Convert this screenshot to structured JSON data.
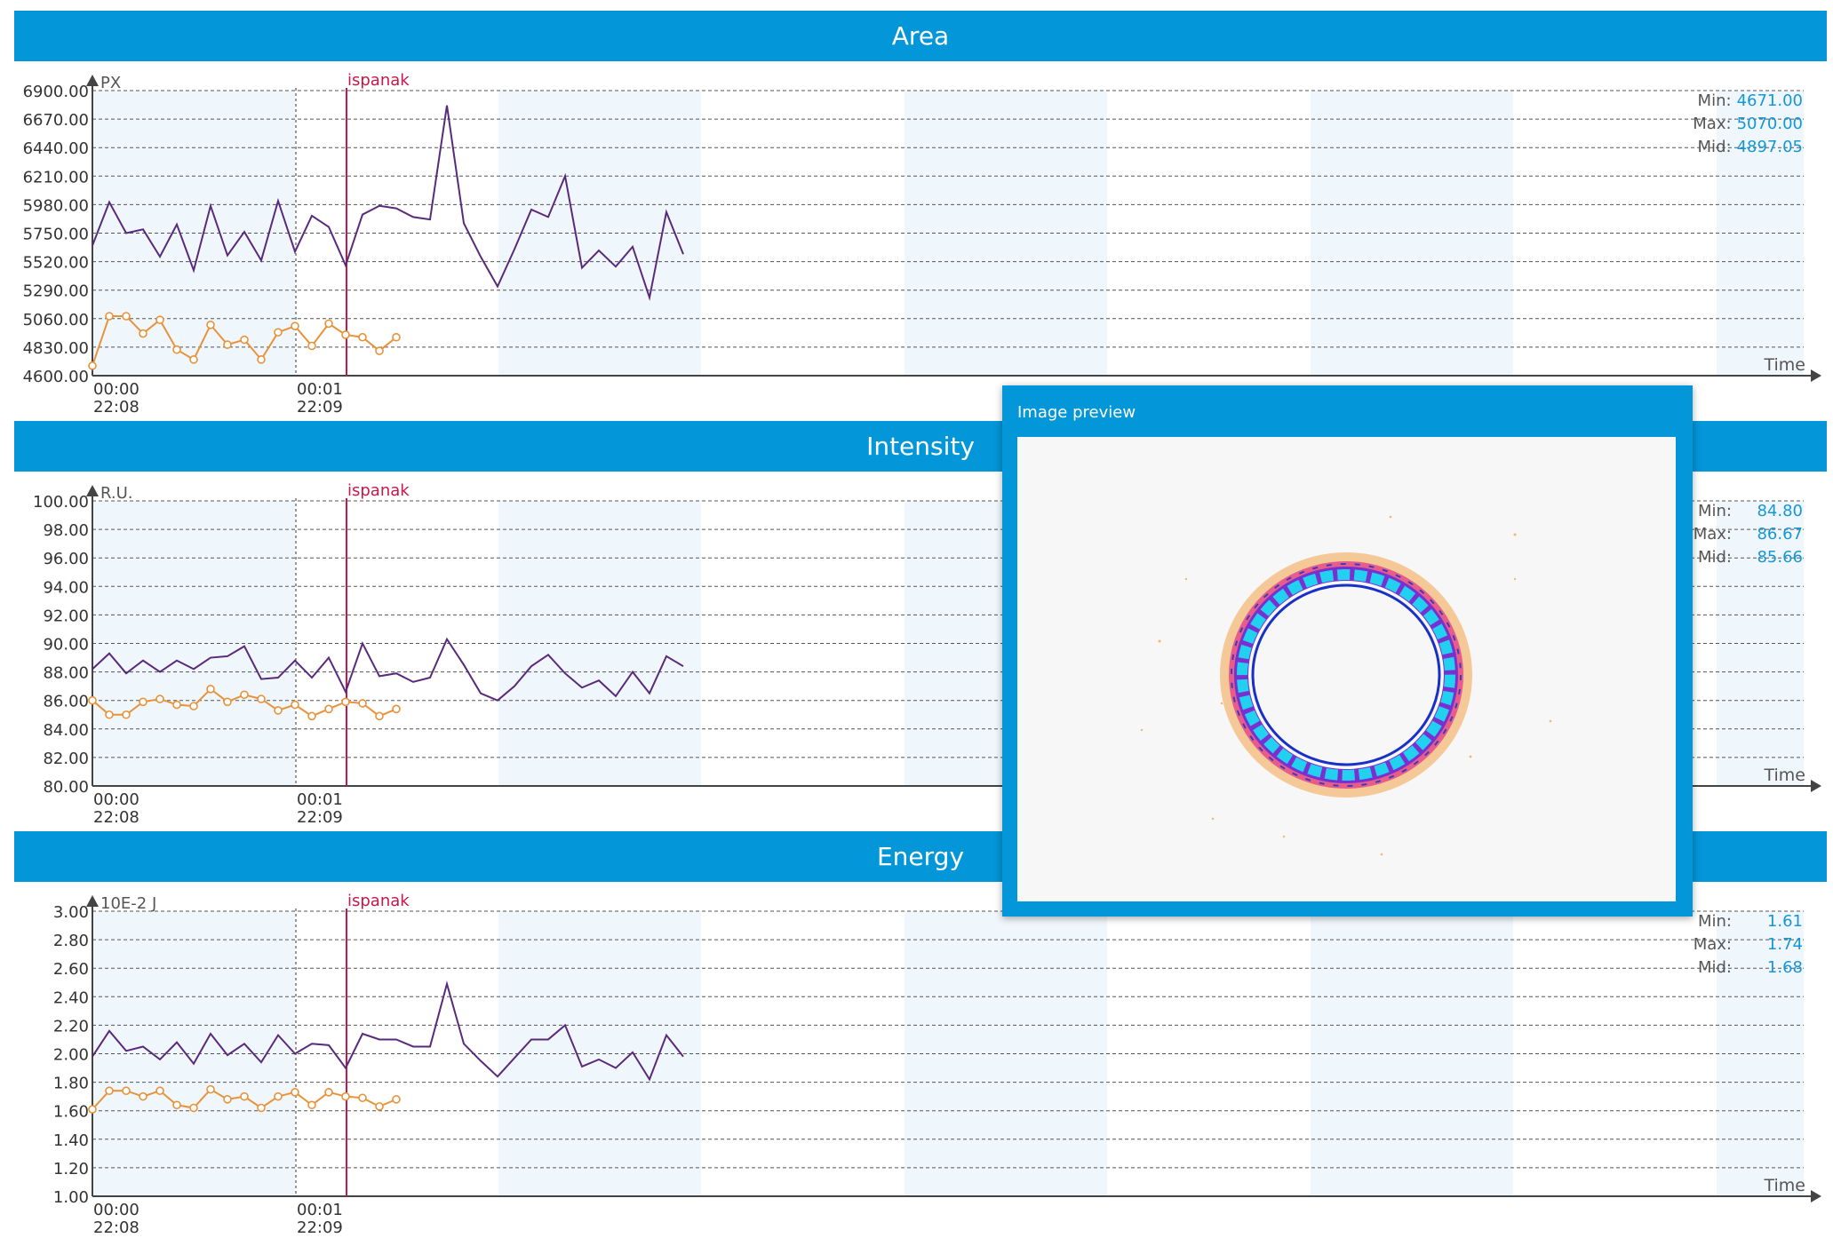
{
  "colors": {
    "header": "#0396d8",
    "purple_series": "#5a2a7a",
    "orange_series": "#e8923a",
    "marker_line": "#c8174a",
    "stat_value": "#1596d6",
    "band": "#f0f7fc"
  },
  "charts": [
    {
      "title": "Area",
      "unit": "PX",
      "axis_label": "Time",
      "marker_label": "ispanak",
      "y_ticks": [
        "6900.00",
        "6670.00",
        "6440.00",
        "6210.00",
        "5980.00",
        "5750.00",
        "5520.00",
        "5290.00",
        "5060.00",
        "4830.00",
        "4600.00"
      ],
      "x_ticks": [
        {
          "top": "00:00",
          "bottom": "22:08"
        },
        {
          "top": "00:01",
          "bottom": "22:09"
        }
      ],
      "stats": {
        "min_label": "Min:",
        "min_value": "4671.00",
        "max_label": "Max:",
        "max_value": "5070.00",
        "mid_label": "Mid:",
        "mid_value": "4897.05"
      }
    },
    {
      "title": "Intensity",
      "unit": "R.U.",
      "axis_label": "Time",
      "marker_label": "ispanak",
      "y_ticks": [
        "100.00",
        "98.00",
        "96.00",
        "94.00",
        "92.00",
        "90.00",
        "88.00",
        "86.00",
        "84.00",
        "82.00",
        "80.00"
      ],
      "x_ticks": [
        {
          "top": "00:00",
          "bottom": "22:08"
        },
        {
          "top": "00:01",
          "bottom": "22:09"
        }
      ],
      "stats": {
        "min_label": "Min:",
        "min_value": "84.80",
        "max_label": "Max:",
        "max_value": "86.67",
        "mid_label": "Mid:",
        "mid_value": "85.66"
      }
    },
    {
      "title": "Energy",
      "unit": "10E-2 J",
      "axis_label": "Time",
      "marker_label": "ispanak",
      "y_ticks": [
        "3.00",
        "2.80",
        "2.60",
        "2.40",
        "2.20",
        "2.00",
        "1.80",
        "1.60",
        "1.40",
        "1.20",
        "1.00"
      ],
      "x_ticks": [
        {
          "top": "00:00",
          "bottom": "22:08"
        },
        {
          "top": "00:01",
          "bottom": "22:09"
        }
      ],
      "stats": {
        "min_label": "Min:",
        "min_value": "1.61",
        "max_label": "Max:",
        "max_value": "1.74",
        "mid_label": "Mid:",
        "mid_value": "1.68"
      }
    }
  ],
  "preview": {
    "title": "Image preview",
    "image_name": "beam-ring-profile"
  },
  "chart_data": [
    {
      "type": "line",
      "title": "Area",
      "ylabel": "PX",
      "xlabel": "Time",
      "ylim": [
        4600,
        6900
      ],
      "x_ticks": [
        "00:00 22:08",
        "00:01 22:09"
      ],
      "annotation": "ispanak",
      "series": [
        {
          "values": [
            5650,
            6000,
            5750,
            5780,
            5560,
            5820,
            5450,
            5970,
            5570,
            5760,
            5530,
            6010,
            5600,
            5890,
            5800,
            5490,
            5900,
            5970,
            5950,
            5880,
            5860,
            6780,
            5830,
            5560,
            5320,
            5620,
            5940,
            5880,
            6210,
            5470,
            5610,
            5480,
            5640,
            5230,
            5920,
            5580
          ]
        },
        {
          "values": [
            4680,
            5080,
            5080,
            4940,
            5050,
            4810,
            4730,
            5010,
            4850,
            4890,
            4730,
            4950,
            5000,
            4840,
            5020,
            4930,
            4910,
            4800,
            4910
          ]
        }
      ]
    },
    {
      "type": "line",
      "title": "Intensity",
      "ylabel": "R.U.",
      "xlabel": "Time",
      "ylim": [
        80,
        100
      ],
      "x_ticks": [
        "00:00 22:08",
        "00:01 22:09"
      ],
      "annotation": "ispanak",
      "series": [
        {
          "values": [
            88.2,
            89.3,
            87.9,
            88.8,
            88.0,
            88.8,
            88.2,
            89.0,
            89.1,
            89.8,
            87.5,
            87.6,
            88.8,
            87.6,
            89.0,
            86.6,
            90.0,
            87.7,
            87.9,
            87.3,
            87.6,
            90.3,
            88.5,
            86.5,
            86.0,
            87.0,
            88.4,
            89.2,
            87.9,
            86.9,
            87.4,
            86.3,
            88.0,
            86.5,
            89.1,
            88.4
          ]
        },
        {
          "values": [
            86.0,
            85.0,
            85.0,
            85.9,
            86.1,
            85.7,
            85.6,
            86.8,
            85.9,
            86.4,
            86.1,
            85.3,
            85.7,
            84.9,
            85.4,
            85.9,
            85.8,
            84.9,
            85.4
          ]
        }
      ]
    },
    {
      "type": "line",
      "title": "Energy",
      "ylabel": "10E-2 J",
      "xlabel": "Time",
      "ylim": [
        1,
        3
      ],
      "x_ticks": [
        "00:00 22:08",
        "00:01 22:09"
      ],
      "annotation": "ispanak",
      "series": [
        {
          "values": [
            1.98,
            2.16,
            2.02,
            2.05,
            1.96,
            2.08,
            1.93,
            2.14,
            1.99,
            2.07,
            1.94,
            2.13,
            2.0,
            2.07,
            2.06,
            1.9,
            2.14,
            2.1,
            2.1,
            2.05,
            2.05,
            2.49,
            2.07,
            1.95,
            1.84,
            1.97,
            2.1,
            2.1,
            2.2,
            1.91,
            1.96,
            1.9,
            2.01,
            1.82,
            2.13,
            1.98
          ]
        },
        {
          "values": [
            1.61,
            1.74,
            1.74,
            1.7,
            1.74,
            1.64,
            1.62,
            1.75,
            1.68,
            1.7,
            1.62,
            1.7,
            1.73,
            1.64,
            1.73,
            1.7,
            1.69,
            1.63,
            1.68
          ]
        }
      ]
    }
  ]
}
